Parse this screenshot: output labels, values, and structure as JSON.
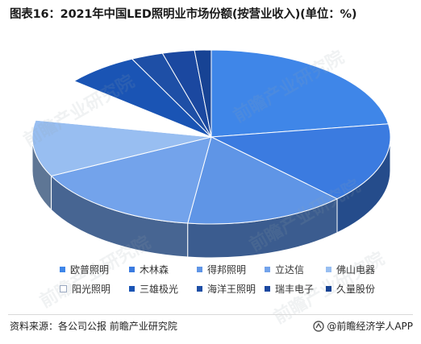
{
  "title": "图表16：2021年中国LED照明业市场份额(按营业收入)(单位：%)",
  "source": "资料来源：各公司公报 前瞻产业研究院",
  "brand": "@前瞻经济学人APP",
  "watermark": "前瞻产业研究院",
  "chart_data": {
    "type": "pie",
    "title": "图表16：2021年中国LED照明业市场份额(按营业收入)(单位：%)",
    "style": "3d-exploded",
    "slices": [
      {
        "name": "欧普照明",
        "value": 22.6,
        "color": "#3F86E8"
      },
      {
        "name": "木林森",
        "value": 15.0,
        "color": "#3B7BE0"
      },
      {
        "name": "得邦照明",
        "value": 14.5,
        "color": "#5F95E6"
      },
      {
        "name": "立达信",
        "value": 15.5,
        "color": "#73A3EB"
      },
      {
        "name": "佛山电器",
        "value": 10.5,
        "color": "#98BEF1"
      },
      {
        "name": "阳光照明",
        "value": 8.0,
        "color": "#FFFFFF"
      },
      {
        "name": "三雄极光",
        "value": 6.6,
        "color": "#1A54B4"
      },
      {
        "name": "海洋王照明",
        "value": 2.9,
        "color": "#1E4FA6"
      },
      {
        "name": "瑞丰电子",
        "value": 2.9,
        "color": "#1B48A0"
      },
      {
        "name": "久量股份",
        "value": 1.5,
        "color": "#174394"
      }
    ]
  },
  "legend": [
    {
      "label": "欧普照明",
      "color": "#3F86E8"
    },
    {
      "label": "木林森",
      "color": "#3B7BE0"
    },
    {
      "label": "得邦照明",
      "color": "#5F95E6"
    },
    {
      "label": "立达信",
      "color": "#73A3EB"
    },
    {
      "label": "佛山电器",
      "color": "#98BEF1"
    },
    {
      "label": "阳光照明",
      "color": "#FFFFFF"
    },
    {
      "label": "三雄极光",
      "color": "#1A54B4"
    },
    {
      "label": "海洋王照明",
      "color": "#1E4FA6"
    },
    {
      "label": "瑞丰电子",
      "color": "#1B48A0"
    },
    {
      "label": "久量股份",
      "color": "#174394"
    }
  ]
}
